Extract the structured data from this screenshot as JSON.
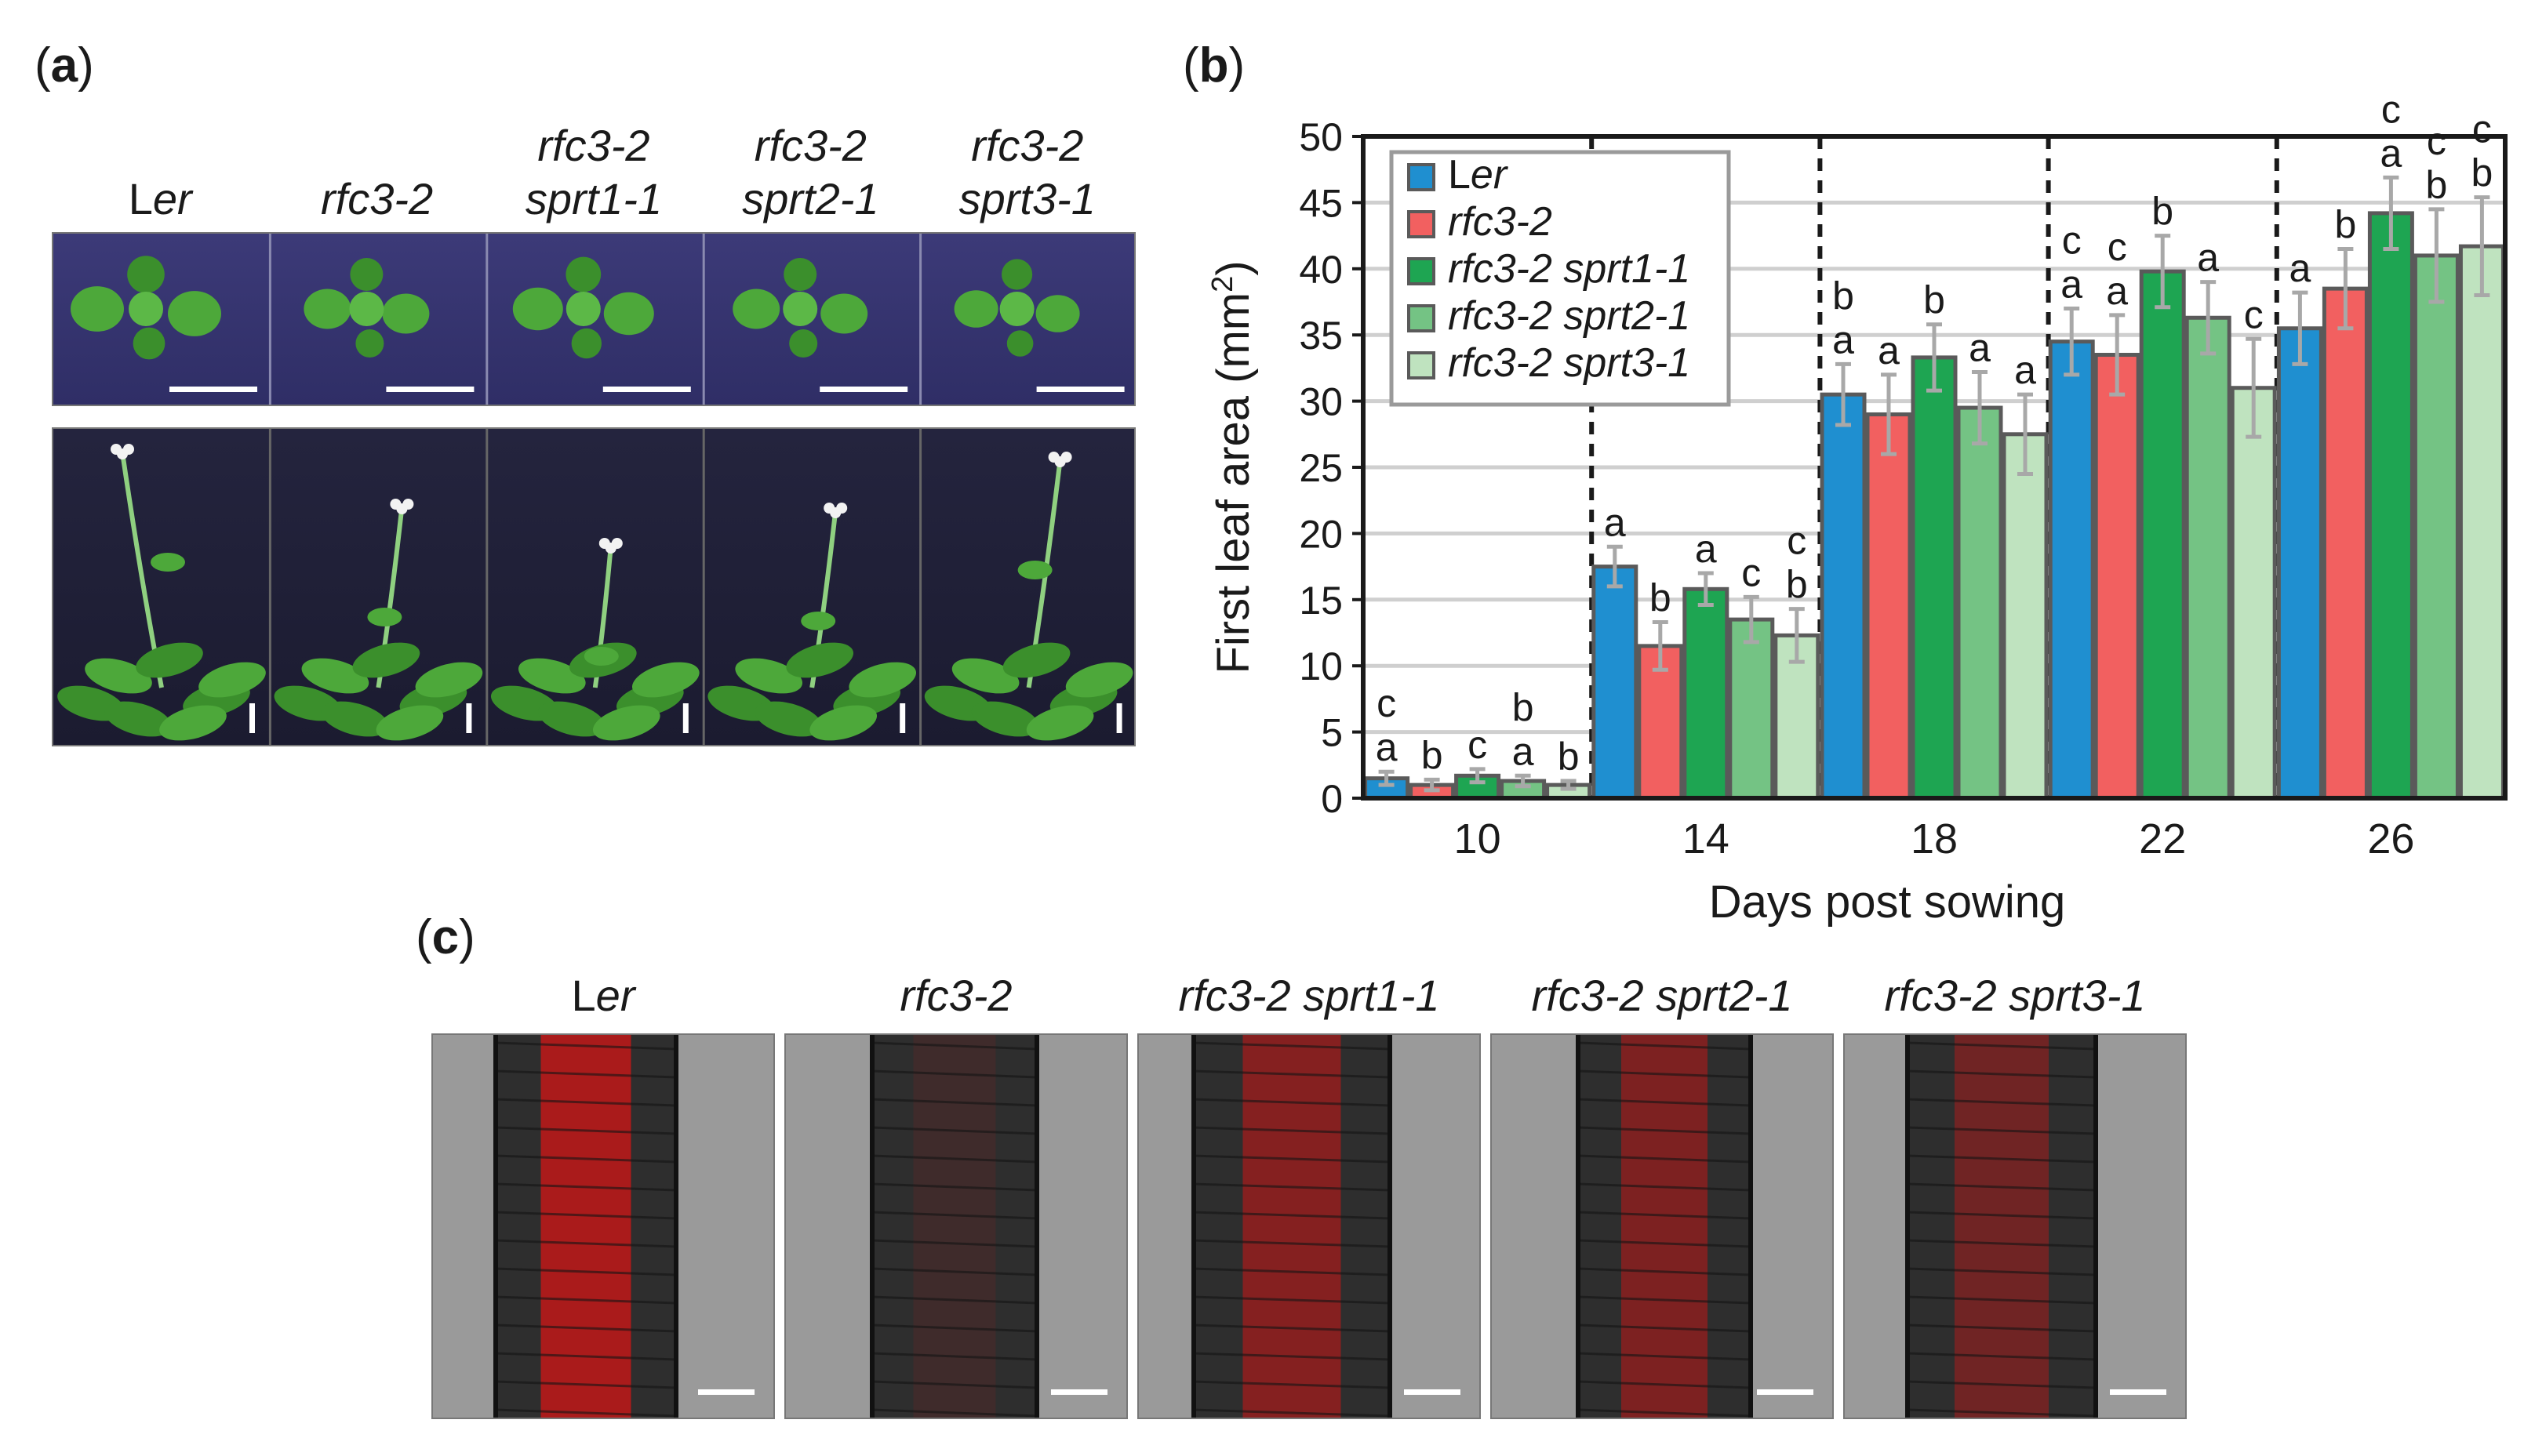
{
  "panel_a": {
    "label_open": "(",
    "label_letter": "a",
    "label_close": ")",
    "genotypes": [
      {
        "line1": "",
        "line2_prefix": "L",
        "line2_italic": "er"
      },
      {
        "line1": "",
        "line2_prefix": "",
        "line2_italic": "rfc3-2"
      },
      {
        "line1": "rfc3-2",
        "line2_prefix": "",
        "line2_italic": "sprt1-1"
      },
      {
        "line1": "rfc3-2",
        "line2_prefix": "",
        "line2_italic": "sprt2-1"
      },
      {
        "line1": "rfc3-2",
        "line2_prefix": "",
        "line2_italic": "sprt3-1"
      }
    ]
  },
  "panel_b": {
    "label_open": "(",
    "label_letter": "b",
    "label_close": ")"
  },
  "panel_c": {
    "label_open": "(",
    "label_letter": "c",
    "label_close": ")",
    "genotypes": [
      {
        "prefix": "L",
        "italic": "er"
      },
      {
        "prefix": "",
        "italic": "rfc3-2"
      },
      {
        "prefix": "",
        "italic": "rfc3-2 sprt1-1"
      },
      {
        "prefix": "",
        "italic": "rfc3-2 sprt2-1"
      },
      {
        "prefix": "",
        "italic": "rfc3-2 sprt3-1"
      }
    ]
  },
  "chart_data": {
    "type": "bar",
    "title": "",
    "xlabel": "Days post sowing",
    "ylabel": "First leaf area (mm",
    "ylabel_sup": "2",
    "ylabel_close": ")",
    "ylim": [
      0,
      50
    ],
    "yticks": [
      0,
      5,
      10,
      15,
      20,
      25,
      30,
      35,
      40,
      45,
      50
    ],
    "grid": true,
    "legend_position": "top-left",
    "categories": [
      "10",
      "14",
      "18",
      "22",
      "26"
    ],
    "series": [
      {
        "name": "Ler",
        "name_prefix": "L",
        "name_italic": "er",
        "color": "#1f8fd0",
        "values": [
          1.5,
          17.5,
          30.5,
          34.5,
          35.5
        ],
        "errors": [
          0.5,
          1.5,
          2.3,
          2.5,
          2.7
        ]
      },
      {
        "name": "rfc3-2",
        "name_prefix": "",
        "name_italic": "rfc3-2",
        "color": "#f26060",
        "values": [
          1.0,
          11.5,
          29.0,
          33.5,
          38.5
        ],
        "errors": [
          0.4,
          1.8,
          3.0,
          3.0,
          3.0
        ]
      },
      {
        "name": "rfc3-2 sprt1-1",
        "name_prefix": "",
        "name_italic": "rfc3-2 sprt1-1",
        "color": "#1ea552",
        "values": [
          1.7,
          15.8,
          33.3,
          39.8,
          44.2
        ],
        "errors": [
          0.5,
          1.2,
          2.5,
          2.7,
          2.7
        ]
      },
      {
        "name": "rfc3-2 sprt2-1",
        "name_prefix": "",
        "name_italic": "rfc3-2 sprt2-1",
        "color": "#74c384",
        "values": [
          1.3,
          13.5,
          29.5,
          36.3,
          41.0
        ],
        "errors": [
          0.4,
          1.7,
          2.7,
          2.7,
          3.5
        ]
      },
      {
        "name": "rfc3-2 sprt3-1",
        "name_prefix": "",
        "name_italic": "rfc3-2 sprt3-1",
        "color": "#bfe3bf",
        "values": [
          1.0,
          12.3,
          27.5,
          31.0,
          41.7
        ],
        "errors": [
          0.3,
          2.0,
          3.0,
          3.7,
          3.7
        ]
      }
    ],
    "significance": [
      [
        "c a",
        "b",
        "c",
        "b a",
        "b"
      ],
      [
        "a",
        "b",
        "a",
        "c",
        "c b"
      ],
      [
        "b a",
        "a",
        "b",
        "a",
        "a"
      ],
      [
        "c a",
        "c a",
        "b",
        "a",
        "c"
      ],
      [
        "a",
        "b",
        "c a",
        "c b",
        "c b"
      ]
    ]
  }
}
